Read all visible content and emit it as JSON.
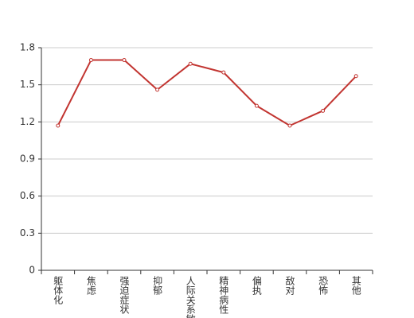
{
  "chart_data": {
    "type": "line",
    "categories": [
      "躯体化",
      "焦虑",
      "强迫症状",
      "抑郁",
      "人际关系敏感",
      "精神病性",
      "偏执",
      "敌对",
      "恐怖",
      "其他"
    ],
    "series": [
      {
        "color": "#c23531",
        "values": [
          1.17,
          1.7,
          1.7,
          1.46,
          1.67,
          1.6,
          1.33,
          1.17,
          1.29,
          1.57
        ]
      }
    ],
    "ylim": [
      0,
      1.8
    ],
    "yticks": [
      0,
      0.3,
      0.6,
      0.9,
      1.2,
      1.5,
      1.8
    ],
    "grid": true
  }
}
